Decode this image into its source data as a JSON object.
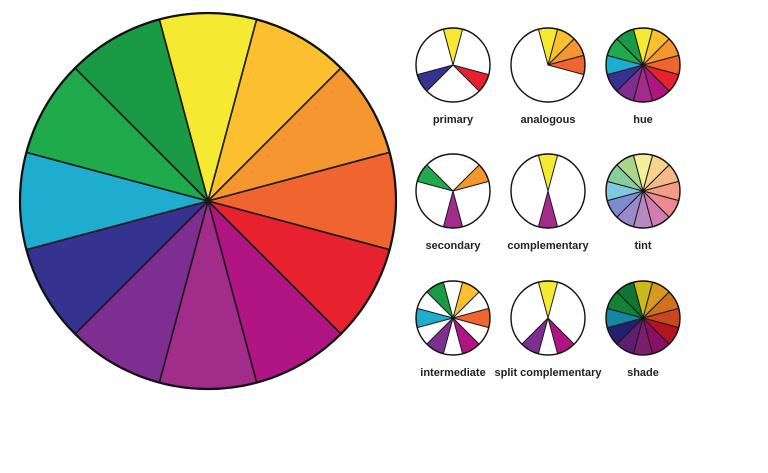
{
  "wheel": {
    "colors": [
      "yellow",
      "yellow-orange",
      "orange",
      "red-orange",
      "red",
      "red-violet",
      "violet",
      "blue-violet",
      "blue",
      "blue-green",
      "green",
      "yellow-green"
    ],
    "hex": [
      "#f5ea31",
      "#fbbf2f",
      "#f6962f",
      "#f0652f",
      "#e8212e",
      "#b01583",
      "#a12c8a",
      "#7e2d90",
      "#353290",
      "#1fadcf",
      "#1faa4b",
      "#1a9a44"
    ]
  },
  "schemes": [
    {
      "id": "primary",
      "label": "primary",
      "type": "select",
      "slices": [
        0,
        4,
        8
      ]
    },
    {
      "id": "analogous",
      "label": "analogous",
      "type": "select",
      "slices": [
        0,
        1,
        2,
        3
      ]
    },
    {
      "id": "hue",
      "label": "hue",
      "type": "full",
      "hex": [
        "#f5ea31",
        "#fbbf2f",
        "#f6962f",
        "#f0652f",
        "#e8212e",
        "#b01583",
        "#a12c8a",
        "#7e2d90",
        "#353290",
        "#1fadcf",
        "#1faa4b",
        "#1a9a44"
      ]
    },
    {
      "id": "secondary",
      "label": "secondary",
      "type": "select",
      "slices": [
        2,
        6,
        10
      ]
    },
    {
      "id": "complementary",
      "label": "complementary",
      "type": "select",
      "slices": [
        0,
        6
      ]
    },
    {
      "id": "tint",
      "label": "tint",
      "type": "full",
      "hex": [
        "#f3ef9a",
        "#f8d38e",
        "#f6b98a",
        "#f29c86",
        "#ee8a8f",
        "#d27cb1",
        "#b58ac0",
        "#9a8ac5",
        "#7f8ad0",
        "#7ec8e0",
        "#86cf9a",
        "#a9d68c"
      ]
    },
    {
      "id": "intermediate",
      "label": "intermediate",
      "type": "select",
      "slices": [
        1,
        3,
        5,
        7,
        9,
        11
      ]
    },
    {
      "id": "split-complementary",
      "label": "split complementary",
      "type": "select",
      "slices": [
        0,
        5,
        7
      ]
    },
    {
      "id": "shade",
      "label": "shade",
      "type": "full",
      "hex": [
        "#c9b91a",
        "#d79a1f",
        "#d2701e",
        "#c8471f",
        "#b3141f",
        "#881167",
        "#7b1e6c",
        "#5e1f70",
        "#23216d",
        "#1488a3",
        "#138237",
        "#0f7434"
      ]
    }
  ]
}
